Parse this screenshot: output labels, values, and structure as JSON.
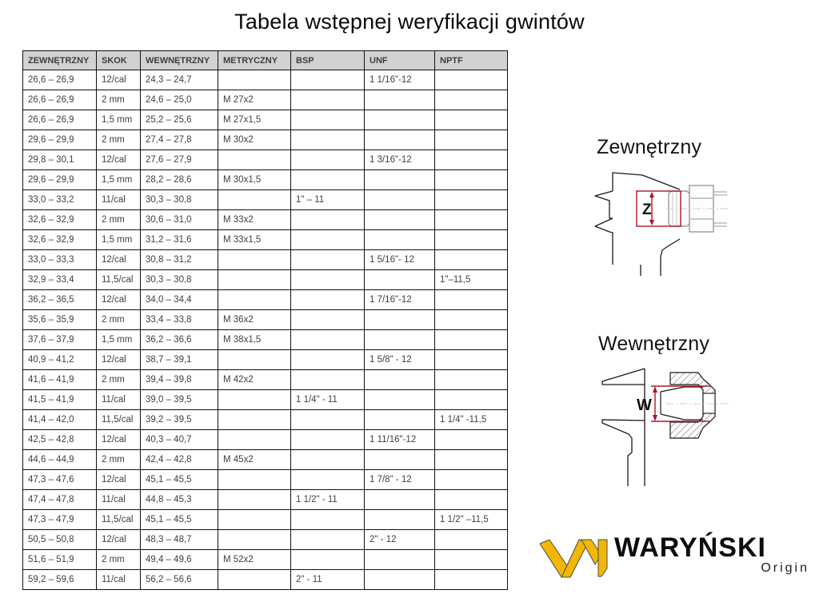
{
  "title": "Tabela wstępnej weryfikacji gwintów",
  "table": {
    "headers": [
      "ZEWNĘTRZNY",
      "SKOK",
      "WEWNĘTRZNY",
      "METRYCZNY",
      "BSP",
      "UNF",
      "NPTF"
    ],
    "rows": [
      [
        "26,6 – 26,9",
        "12/cal",
        "24,3 – 24,7",
        "",
        "",
        "1 1/16\"-12",
        ""
      ],
      [
        "26,6 – 26,9",
        "2 mm",
        "24,6 – 25,0",
        "M 27x2",
        "",
        "",
        ""
      ],
      [
        "26,6 – 26,9",
        "1,5 mm",
        "25,2 – 25,6",
        "M 27x1,5",
        "",
        "",
        ""
      ],
      [
        "29,6 – 29,9",
        "2 mm",
        "27,4 – 27,8",
        "M 30x2",
        "",
        "",
        ""
      ],
      [
        "29,8 – 30,1",
        "12/cal",
        "27,6 – 27,9",
        "",
        "",
        "1 3/16\"-12",
        ""
      ],
      [
        "29,6 – 29,9",
        "1,5 mm",
        "28,2 – 28,6",
        "M 30x1,5",
        "",
        "",
        ""
      ],
      [
        "33,0 – 33,2",
        "11/cal",
        "30,3 – 30,8",
        "",
        "1\" – 11",
        "",
        ""
      ],
      [
        "32,6 – 32,9",
        "2 mm",
        "30,6 – 31,0",
        "M 33x2",
        "",
        "",
        ""
      ],
      [
        "32,6 – 32,9",
        "1,5 mm",
        "31,2 – 31,6",
        "M 33x1,5",
        "",
        "",
        ""
      ],
      [
        "33,0 – 33,3",
        "12/cal",
        "30,8 – 31,2",
        "",
        "",
        "1 5/16\"- 12",
        ""
      ],
      [
        "32,9 – 33,4",
        "11,5/cal",
        "30,3 – 30,8",
        "",
        "",
        "",
        "1\"–11,5"
      ],
      [
        "36,2 – 36,5",
        "12/cal",
        "34,0 – 34,4",
        "",
        "",
        "1 7/16\"-12",
        ""
      ],
      [
        "35,6 – 35,9",
        "2 mm",
        "33,4 – 33,8",
        "M 36x2",
        "",
        "",
        ""
      ],
      [
        "37,6 – 37,9",
        "1,5 mm",
        "36,2 – 36,6",
        "M 38x1,5",
        "",
        "",
        ""
      ],
      [
        "40,9 – 41,2",
        "12/cal",
        "38,7 – 39,1",
        "",
        "",
        "1 5/8\" - 12",
        ""
      ],
      [
        "41,6 – 41,9",
        "2 mm",
        "39,4 – 39,8",
        "M 42x2",
        "",
        "",
        ""
      ],
      [
        "41,5 – 41,9",
        "11/cal",
        "39,0 – 39,5",
        "",
        "1 1/4\" - 11",
        "",
        ""
      ],
      [
        "41,4 – 42,0",
        "11,5/cal",
        "39,2 – 39,5",
        "",
        "",
        "",
        "1 1/4\" -11,5"
      ],
      [
        "42,5 – 42,8",
        "12/cal",
        "40,3 – 40,7",
        "",
        "",
        "1 11/16\"-12",
        ""
      ],
      [
        "44,6 – 44,9",
        "2 mm",
        "42,4 – 42,8",
        "M 45x2",
        "",
        "",
        ""
      ],
      [
        "47,3 – 47,6",
        "12/cal",
        "45,1 – 45,5",
        "",
        "",
        "1 7/8\" - 12",
        ""
      ],
      [
        "47,4 – 47,8",
        "11/cal",
        "44,8 – 45,3",
        "",
        "1 1/2\" - 11",
        "",
        ""
      ],
      [
        "47,3 – 47,9",
        "11,5/cal",
        "45,1 – 45,5",
        "",
        "",
        "",
        "1 1/2\" –11,5"
      ],
      [
        "50,5 – 50,8",
        "12/cal",
        "48,3 – 48,7",
        "",
        "",
        "2\" - 12",
        ""
      ],
      [
        "51,6 – 51,9",
        "2 mm",
        "49,4 – 49,6",
        "M 52x2",
        "",
        "",
        ""
      ],
      [
        "59,2 – 59,6",
        "11/cal",
        "56,2 – 56,6",
        "",
        "2\" - 11",
        "",
        ""
      ]
    ]
  },
  "diagrams": {
    "external_label": "Zewnętrzny",
    "external_dim_label": "Z",
    "internal_label": "Wewnętrzny",
    "internal_dim_label": "W"
  },
  "logo": {
    "brand": "WARYŃSKI",
    "sub": "Origin"
  },
  "colors": {
    "dimension_red": "#b01328",
    "logo_yellow": "#f2b705",
    "header_gray": "#d2d2d2",
    "drawing_black": "#1a1a1a",
    "fitting_gray": "#9a9a9a"
  }
}
